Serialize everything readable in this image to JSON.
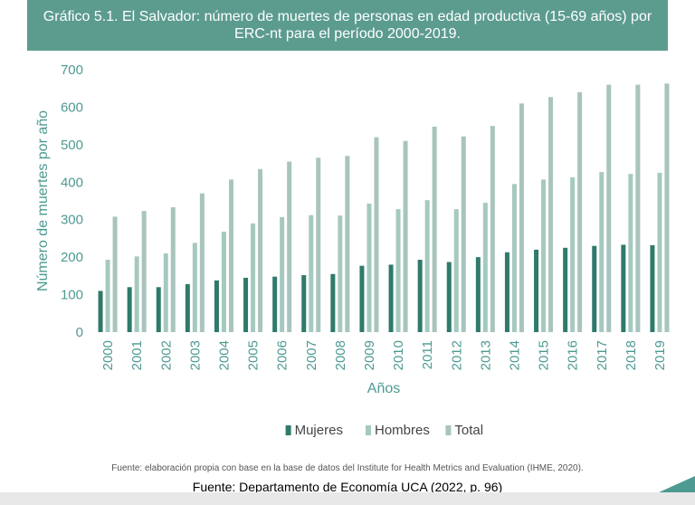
{
  "title": "Gráfico 5.1. El Salvador: número de muertes de personas en edad productiva (15-69 años) por ERC-nt para el período 2000-2019.",
  "chart_data": {
    "type": "bar",
    "title": "Gráfico 5.1. El Salvador: número de muertes de personas en edad productiva (15-69 años) por ERC-nt para el período 2000-2019.",
    "xlabel": "Años",
    "ylabel": "Número de muertes por año",
    "ylim": [
      0,
      700
    ],
    "yticks": [
      0,
      100,
      200,
      300,
      400,
      500,
      600,
      700
    ],
    "grid": false,
    "legend_position": "bottom",
    "categories": [
      "2000",
      "2001",
      "2002",
      "2003",
      "2004",
      "2005",
      "2006",
      "2007",
      "2008",
      "2009",
      "2010",
      "2011",
      "2012",
      "2013",
      "2014",
      "2015",
      "2016",
      "2017",
      "2018",
      "2019"
    ],
    "series": [
      {
        "name": "Mujeres",
        "color": "#2f7a6b",
        "values": [
          110,
          120,
          120,
          128,
          138,
          145,
          148,
          152,
          155,
          177,
          180,
          193,
          187,
          200,
          213,
          220,
          225,
          230,
          233,
          232
        ]
      },
      {
        "name": "Hombres",
        "color": "#a5c9be",
        "values": [
          193,
          202,
          210,
          238,
          268,
          290,
          307,
          312,
          311,
          343,
          328,
          352,
          328,
          345,
          395,
          407,
          413,
          427,
          422,
          425
        ]
      },
      {
        "name": "Total",
        "color": "#a8c4bd",
        "values": [
          308,
          323,
          333,
          370,
          407,
          435,
          455,
          465,
          470,
          520,
          510,
          548,
          522,
          550,
          610,
          627,
          640,
          660,
          660,
          663
        ]
      }
    ]
  },
  "footer": {
    "source_small": "Fuente: elaboración propia con base en la base de datos del Institute for Health Metrics and Evaluation (IHME, 2020).",
    "source_main": "Fuente: Departamento de Economía UCA (2022, p. 96)"
  },
  "colors": {
    "banner": "#5c9c8f",
    "axis_text": "#4d9a92",
    "corner_accent": "#4d9a92"
  }
}
